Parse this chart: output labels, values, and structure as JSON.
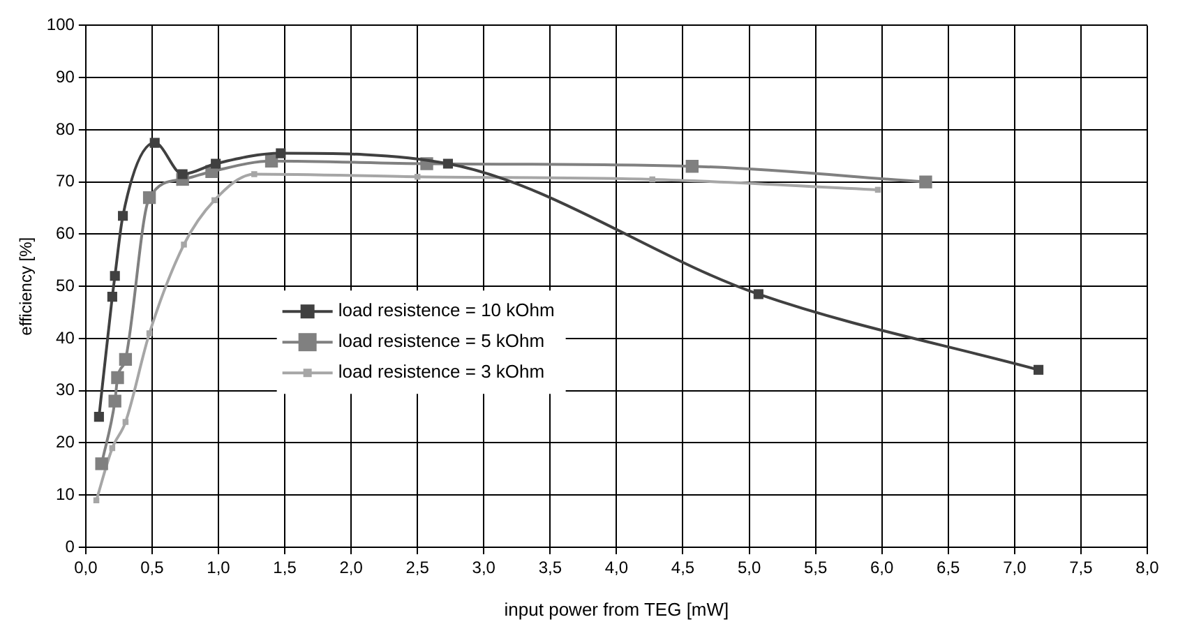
{
  "chart_data": {
    "type": "line",
    "xlabel": "input power from TEG [mW]",
    "ylabel": "efficiency [%]",
    "marker": "square",
    "grid": true,
    "legend": "center left",
    "xlim": [
      0,
      8
    ],
    "ylim": [
      0,
      100
    ],
    "xticks": [
      {
        "value": 0,
        "label": "0,0"
      },
      {
        "value": 0.5,
        "label": "0,5"
      },
      {
        "value": 1,
        "label": "1,0"
      },
      {
        "value": 1.5,
        "label": "1,5"
      },
      {
        "value": 2,
        "label": "2,0"
      },
      {
        "value": 2.5,
        "label": "2,5"
      },
      {
        "value": 3,
        "label": "3,0"
      },
      {
        "value": 3.5,
        "label": "3,5"
      },
      {
        "value": 4,
        "label": "4,0"
      },
      {
        "value": 4.5,
        "label": "4,5"
      },
      {
        "value": 5,
        "label": "5,0"
      },
      {
        "value": 5.5,
        "label": "5,5"
      },
      {
        "value": 6,
        "label": "6,0"
      },
      {
        "value": 6.5,
        "label": "6,5"
      },
      {
        "value": 7,
        "label": "7,0"
      },
      {
        "value": 7.5,
        "label": "7,5"
      },
      {
        "value": 8,
        "label": "8,0"
      }
    ],
    "yticks": [
      0,
      10,
      20,
      30,
      40,
      50,
      60,
      70,
      80,
      90,
      100
    ],
    "series": [
      {
        "name": "load resistence = 10 kOhm",
        "color": "#404040",
        "x": [
          0.1,
          0.2,
          0.22,
          0.28,
          0.52,
          0.73,
          0.98,
          1.47,
          2.73,
          5.07,
          7.18
        ],
        "values": [
          25,
          48,
          52,
          63.5,
          77.5,
          71.5,
          73.5,
          75.5,
          73.5,
          48.5,
          34
        ]
      },
      {
        "name": "load resistence = 5 kOhm",
        "color": "#808080",
        "x": [
          0.12,
          0.22,
          0.24,
          0.3,
          0.48,
          0.73,
          0.95,
          1.4,
          2.57,
          4.57,
          6.33
        ],
        "values": [
          16,
          28,
          32.5,
          36,
          67,
          70.5,
          72,
          74,
          73.5,
          73,
          70
        ]
      },
      {
        "name": "load resistence = 3 kOhm",
        "color": "#a6a6a6",
        "x": [
          0.08,
          0.2,
          0.3,
          0.48,
          0.74,
          0.97,
          1.27,
          2.5,
          4.27,
          5.97
        ],
        "values": [
          9,
          19,
          24,
          41,
          58,
          66.5,
          71.5,
          71,
          70.5,
          68.5
        ]
      }
    ]
  }
}
